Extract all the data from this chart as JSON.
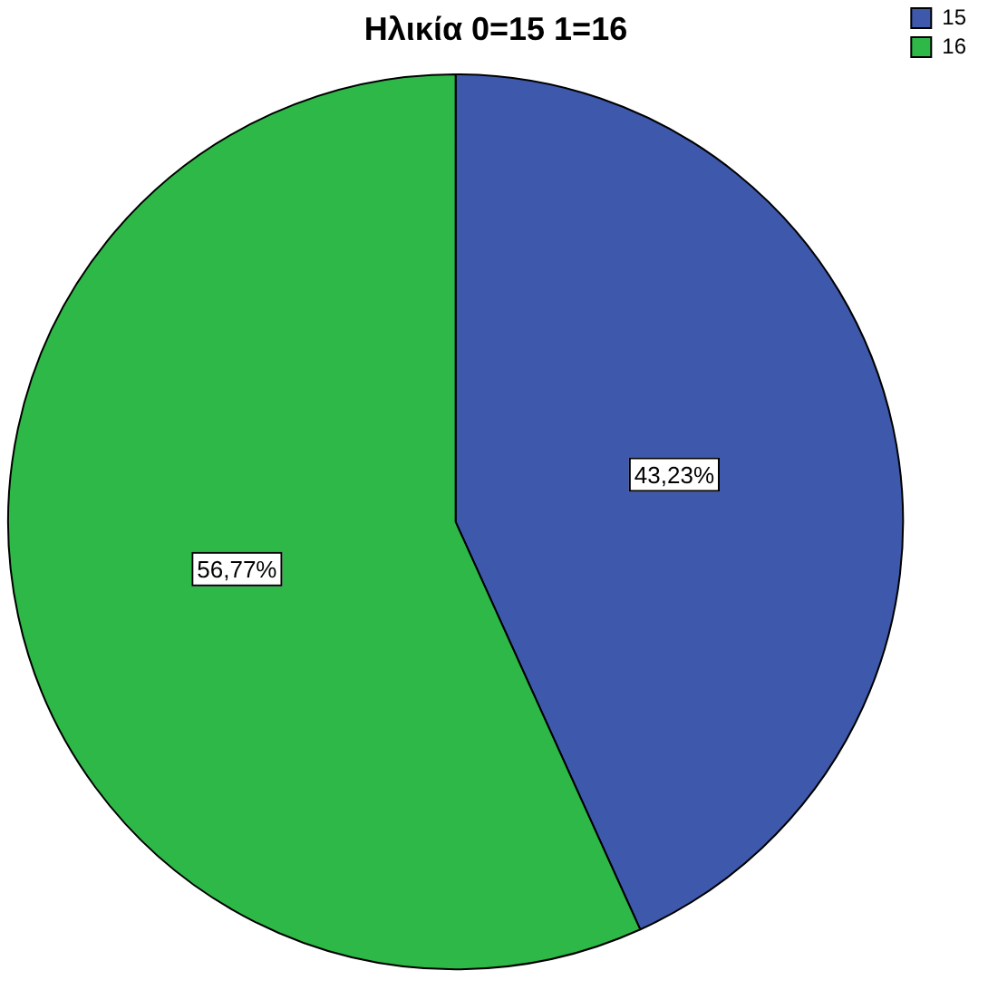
{
  "chart_data": {
    "type": "pie",
    "title": "Ηλικία 0=15 1=16",
    "categories": [
      "15",
      "16"
    ],
    "values": [
      43.23,
      56.77
    ],
    "colors": [
      "#3e58ac",
      "#2eb848"
    ],
    "value_labels": [
      "43,23%",
      "56,77%"
    ],
    "legend": "top right"
  }
}
